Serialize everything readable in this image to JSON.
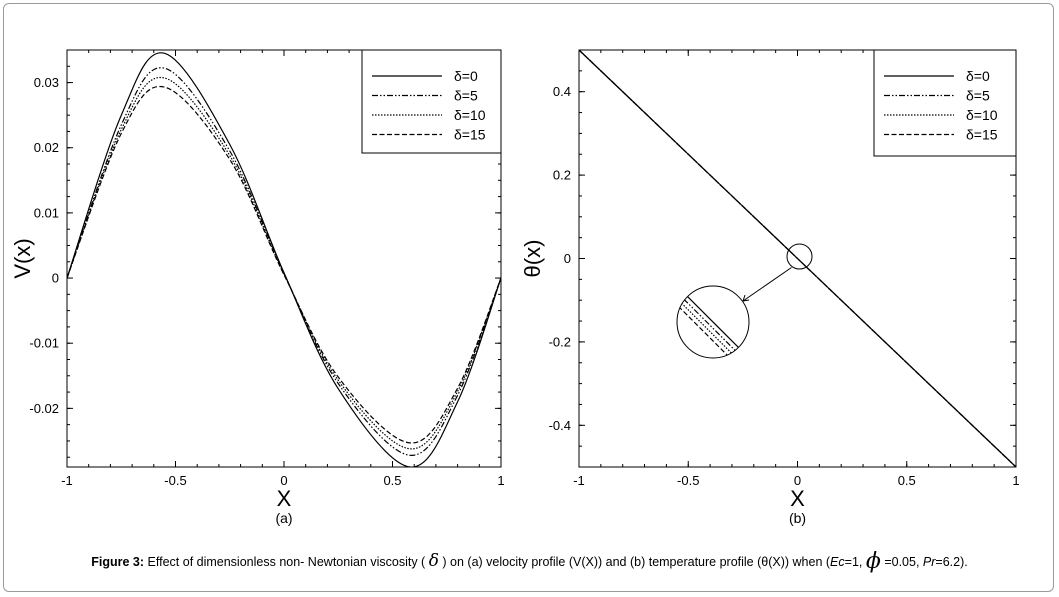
{
  "chart_data": [
    {
      "type": "line",
      "panel_label": "(a)",
      "xlabel": "X",
      "ylabel": "V(x)",
      "xlim": [
        -1,
        1
      ],
      "ylim": [
        -0.029,
        0.035
      ],
      "xticks": [
        -1,
        -0.5,
        0,
        0.5,
        1
      ],
      "xtick_labels": [
        "-1",
        "-0.5",
        "0",
        "0.5",
        "1"
      ],
      "yticks": [
        -0.02,
        -0.01,
        0,
        0.01,
        0.02,
        0.03
      ],
      "ytick_labels": [
        "-0.02",
        "-0.01",
        "0",
        "0.01",
        "0.02",
        "0.03"
      ],
      "grid": false,
      "legend_position": "top-right",
      "series": [
        {
          "name": "δ=0",
          "style": "solid",
          "x": [
            -1,
            -0.75,
            -0.55,
            -0.25,
            0,
            0.25,
            0.58,
            0.8,
            1
          ],
          "y": [
            0,
            0.025,
            0.0345,
            0.0205,
            0.0008,
            -0.017,
            -0.029,
            -0.019,
            0
          ]
        },
        {
          "name": "δ=5",
          "style": "dashdotdot",
          "x": [
            -1,
            -0.75,
            -0.55,
            -0.25,
            0,
            0.25,
            0.58,
            0.8,
            1
          ],
          "y": [
            0,
            0.0235,
            0.0322,
            0.0195,
            0.0007,
            -0.0162,
            -0.0272,
            -0.018,
            0
          ]
        },
        {
          "name": "δ=10",
          "style": "dotted",
          "x": [
            -1,
            -0.75,
            -0.55,
            -0.25,
            0,
            0.25,
            0.58,
            0.8,
            1
          ],
          "y": [
            0,
            0.0228,
            0.0307,
            0.0188,
            0.0006,
            -0.0157,
            -0.0262,
            -0.0174,
            0
          ]
        },
        {
          "name": "δ=15",
          "style": "dashed",
          "x": [
            -1,
            -0.75,
            -0.55,
            -0.25,
            0,
            0.25,
            0.58,
            0.8,
            1
          ],
          "y": [
            0,
            0.0222,
            0.0293,
            0.0182,
            0.0005,
            -0.0152,
            -0.0253,
            -0.0169,
            0
          ]
        }
      ]
    },
    {
      "type": "line",
      "panel_label": "(b)",
      "xlabel": "X",
      "ylabel": "θ(x)",
      "xlim": [
        -1,
        1
      ],
      "ylim": [
        -0.5,
        0.5
      ],
      "xticks": [
        -1,
        -0.5,
        0,
        0.5,
        1
      ],
      "xtick_labels": [
        "-1",
        "-0.5",
        "0",
        "0.5",
        "1"
      ],
      "yticks": [
        -0.4,
        -0.2,
        0,
        0.2,
        0.4
      ],
      "ytick_labels": [
        "-0.4",
        "-0.2",
        "0",
        "0.2",
        "0.4"
      ],
      "grid": false,
      "legend_position": "top-right",
      "inset": "magnified view of curves near X=0",
      "series": [
        {
          "name": "δ=0",
          "style": "solid",
          "x": [
            -1,
            0,
            1
          ],
          "y": [
            0.5,
            0,
            -0.5
          ]
        },
        {
          "name": "δ=5",
          "style": "dashdotdot",
          "x": [
            -1,
            0,
            1
          ],
          "y": [
            0.5,
            0,
            -0.5
          ]
        },
        {
          "name": "δ=10",
          "style": "dotted",
          "x": [
            -1,
            0,
            1
          ],
          "y": [
            0.5,
            0,
            -0.5
          ]
        },
        {
          "name": "δ=15",
          "style": "dashed",
          "x": [
            -1,
            0,
            1
          ],
          "y": [
            0.5,
            0,
            -0.5
          ]
        }
      ]
    }
  ],
  "caption": {
    "figure_label": "Figure 3:",
    "text_1": " Effect of dimensionless non- Newtonian viscosity ( ",
    "delta_symbol": "δ",
    "text_2": " ) on (a) velocity profile (V(X)) and (b) temperature profile (θ(X)) when (",
    "ec_label": "Ec",
    "ec_value": "=1, ",
    "phi_symbol": "ϕ",
    "phi_value": " =0.05, ",
    "pr_label": "Pr",
    "pr_value": "=6.2)."
  }
}
